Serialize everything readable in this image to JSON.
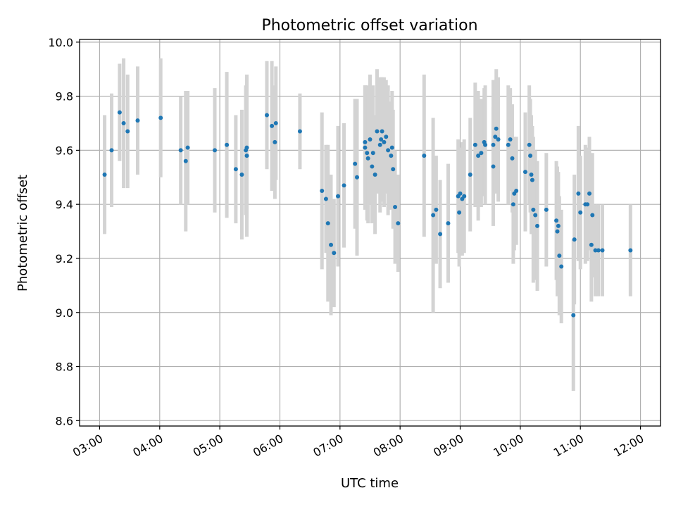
{
  "chart_data": {
    "type": "scatter",
    "title": "Photometric offset variation",
    "xlabel": "UTC time",
    "ylabel": "Photometric offset",
    "x_unit": "UTC time (HH:MM)",
    "xlim": [
      "02:40",
      "12:20"
    ],
    "ylim": [
      8.58,
      10.01
    ],
    "xticks": [
      "03:00",
      "04:00",
      "05:00",
      "06:00",
      "07:00",
      "08:00",
      "09:00",
      "10:00",
      "11:00",
      "12:00"
    ],
    "yticks": [
      8.6,
      8.8,
      9.0,
      9.2,
      9.4,
      9.6,
      9.8,
      10.0
    ],
    "ytick_labels": [
      "8.6",
      "8.8",
      "9.0",
      "9.2",
      "9.4",
      "9.6",
      "9.8",
      "10.0"
    ],
    "grid": true,
    "point_color": "#1f77b4",
    "errorbar_color": "#d3d3d3",
    "series": [
      {
        "points": [
          [
            "03:05",
            9.51,
            0.22
          ],
          [
            "03:12",
            9.6,
            0.21
          ],
          [
            "03:20",
            9.74,
            0.18
          ],
          [
            "03:24",
            9.7,
            0.24
          ],
          [
            "03:28",
            9.67,
            0.21
          ],
          [
            "03:38",
            9.71,
            0.2
          ],
          [
            "04:01",
            9.72,
            0.22
          ],
          [
            "04:21",
            9.6,
            0.2
          ],
          [
            "04:26",
            9.56,
            0.26
          ],
          [
            "04:28",
            9.61,
            0.21
          ],
          [
            "04:55",
            9.6,
            0.23
          ],
          [
            "05:07",
            9.62,
            0.27
          ],
          [
            "05:16",
            9.53,
            0.2
          ],
          [
            "05:22",
            9.51,
            0.24
          ],
          [
            "05:26",
            9.6,
            0.24
          ],
          [
            "05:27",
            9.61,
            0.26
          ],
          [
            "05:27",
            9.58,
            0.3
          ],
          [
            "05:47",
            9.73,
            0.2
          ],
          [
            "05:52",
            9.69,
            0.24
          ],
          [
            "05:55",
            9.63,
            0.21
          ],
          [
            "05:56",
            9.7,
            0.21
          ],
          [
            "06:20",
            9.67,
            0.14
          ],
          [
            "06:42",
            9.45,
            0.29
          ],
          [
            "06:46",
            9.42,
            0.2
          ],
          [
            "06:48",
            9.33,
            0.29
          ],
          [
            "06:51",
            9.25,
            0.26
          ],
          [
            "06:54",
            9.22,
            0.2
          ],
          [
            "07:04",
            9.47,
            0.23
          ],
          [
            "06:58",
            9.43,
            0.26
          ],
          [
            "07:15",
            9.55,
            0.24
          ],
          [
            "07:17",
            9.5,
            0.29
          ],
          [
            "07:25",
            9.63,
            0.21
          ],
          [
            "07:25",
            9.61,
            0.23
          ],
          [
            "07:27",
            9.59,
            0.25
          ],
          [
            "07:28",
            9.57,
            0.24
          ],
          [
            "07:30",
            9.64,
            0.24
          ],
          [
            "07:32",
            9.54,
            0.21
          ],
          [
            "07:33",
            9.59,
            0.25
          ],
          [
            "07:35",
            9.51,
            0.22
          ],
          [
            "07:37",
            9.67,
            0.23
          ],
          [
            "07:40",
            9.62,
            0.25
          ],
          [
            "07:41",
            9.64,
            0.23
          ],
          [
            "07:42",
            9.67,
            0.2
          ],
          [
            "07:44",
            9.63,
            0.24
          ],
          [
            "07:46",
            9.65,
            0.21
          ],
          [
            "07:48",
            9.6,
            0.24
          ],
          [
            "07:51",
            9.58,
            0.2
          ],
          [
            "07:52",
            9.61,
            0.21
          ],
          [
            "07:53",
            9.53,
            0.22
          ],
          [
            "07:55",
            9.39,
            0.21
          ],
          [
            "07:58",
            9.33,
            0.18
          ],
          [
            "08:24",
            9.58,
            0.3
          ],
          [
            "08:33",
            9.36,
            0.36
          ],
          [
            "08:36",
            9.38,
            0.2
          ],
          [
            "08:40",
            9.29,
            0.2
          ],
          [
            "08:48",
            9.33,
            0.22
          ],
          [
            "08:58",
            9.43,
            0.21
          ],
          [
            "08:59",
            9.37,
            0.2
          ],
          [
            "09:00",
            9.44,
            0.17
          ],
          [
            "09:02",
            9.42,
            0.21
          ],
          [
            "09:04",
            9.43,
            0.21
          ],
          [
            "09:10",
            9.51,
            0.21
          ],
          [
            "09:15",
            9.62,
            0.23
          ],
          [
            "09:18",
            9.58,
            0.24
          ],
          [
            "09:21",
            9.59,
            0.2
          ],
          [
            "09:24",
            9.63,
            0.2
          ],
          [
            "09:25",
            9.62,
            0.22
          ],
          [
            "09:33",
            9.54,
            0.22
          ],
          [
            "09:33",
            9.62,
            0.24
          ],
          [
            "09:35",
            9.65,
            0.21
          ],
          [
            "09:36",
            9.68,
            0.22
          ],
          [
            "09:38",
            9.64,
            0.23
          ],
          [
            "09:48",
            9.62,
            0.22
          ],
          [
            "09:50",
            9.64,
            0.19
          ],
          [
            "09:52",
            9.57,
            0.2
          ],
          [
            "09:53",
            9.4,
            0.22
          ],
          [
            "09:54",
            9.44,
            0.21
          ],
          [
            "09:56",
            9.45,
            0.2
          ],
          [
            "10:05",
            9.52,
            0.22
          ],
          [
            "10:09",
            9.62,
            0.22
          ],
          [
            "10:10",
            9.58,
            0.21
          ],
          [
            "10:11",
            9.51,
            0.22
          ],
          [
            "10:12",
            9.49,
            0.2
          ],
          [
            "10:13",
            9.38,
            0.27
          ],
          [
            "10:15",
            9.36,
            0.24
          ],
          [
            "10:17",
            9.32,
            0.24
          ],
          [
            "10:26",
            9.38,
            0.21
          ],
          [
            "10:36",
            9.34,
            0.22
          ],
          [
            "10:37",
            9.3,
            0.24
          ],
          [
            "10:38",
            9.32,
            0.2
          ],
          [
            "10:39",
            9.21,
            0.22
          ],
          [
            "10:41",
            9.17,
            0.21
          ],
          [
            "10:53",
            8.99,
            0.28
          ],
          [
            "10:54",
            9.27,
            0.24
          ],
          [
            "10:58",
            9.44,
            0.25
          ],
          [
            "11:00",
            9.37,
            0.21
          ],
          [
            "11:05",
            9.4,
            0.22
          ],
          [
            "11:07",
            9.4,
            0.21
          ],
          [
            "11:09",
            9.44,
            0.21
          ],
          [
            "11:11",
            9.25,
            0.21
          ],
          [
            "11:12",
            9.36,
            0.23
          ],
          [
            "11:15",
            9.23,
            0.17
          ],
          [
            "11:18",
            9.23,
            0.17
          ],
          [
            "11:22",
            9.23,
            0.17
          ],
          [
            "11:50",
            9.23,
            0.17
          ]
        ]
      }
    ]
  }
}
